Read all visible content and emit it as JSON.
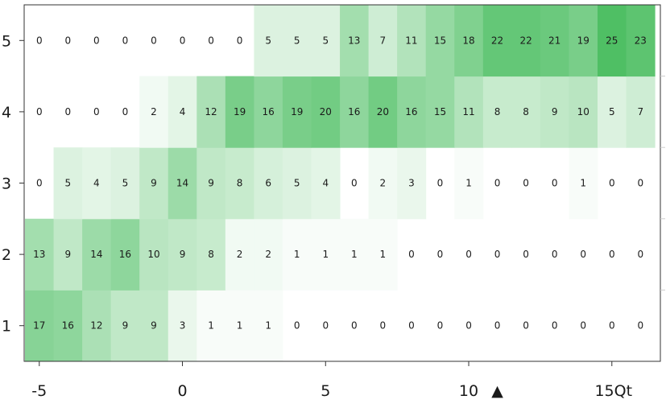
{
  "chart_data": {
    "type": "heatmap",
    "x": [
      -5,
      -4,
      -3,
      -2,
      -1,
      0,
      1,
      2,
      3,
      4,
      5,
      6,
      7,
      8,
      9,
      10,
      11,
      12,
      13,
      14,
      15
    ],
    "y": [
      1,
      2,
      3,
      4,
      5
    ],
    "values": [
      [
        17,
        16,
        12,
        9,
        9,
        3,
        1,
        1,
        1,
        0,
        0,
        0,
        0,
        0,
        0,
        0,
        0,
        0,
        0,
        0,
        0
      ],
      [
        13,
        9,
        14,
        16,
        10,
        9,
        8,
        2,
        2,
        1,
        1,
        1,
        1,
        0,
        0,
        0,
        0,
        0,
        0,
        0,
        0
      ],
      [
        0,
        5,
        4,
        5,
        9,
        14,
        9,
        8,
        6,
        5,
        4,
        0,
        2,
        3,
        0,
        1,
        0,
        0,
        0,
        1,
        0
      ],
      [
        0,
        0,
        0,
        0,
        2,
        4,
        12,
        19,
        16,
        19,
        20,
        16,
        20,
        16,
        15,
        11,
        8,
        8,
        9,
        10,
        5
      ],
      [
        0,
        0,
        0,
        0,
        0,
        0,
        0,
        0,
        5,
        5,
        5,
        13,
        7,
        11,
        15,
        18,
        22,
        22,
        21,
        19,
        25
      ]
    ],
    "row_last_extra": [
      0,
      0,
      0,
      7,
      23
    ],
    "xlim": [
      -5.5,
      15.5
    ],
    "x_ticks": [
      -5,
      0,
      5,
      10,
      15
    ],
    "x_tick_labels": [
      "-5",
      "0",
      "5",
      "10",
      "15Qt"
    ],
    "y_tick_labels": [
      "1",
      "2",
      "3",
      "4",
      "5"
    ],
    "marker": {
      "symbol": "▲",
      "x": 11
    },
    "color_low": "#ffffff",
    "color_high": "#4fbf64",
    "max_value": 25
  }
}
